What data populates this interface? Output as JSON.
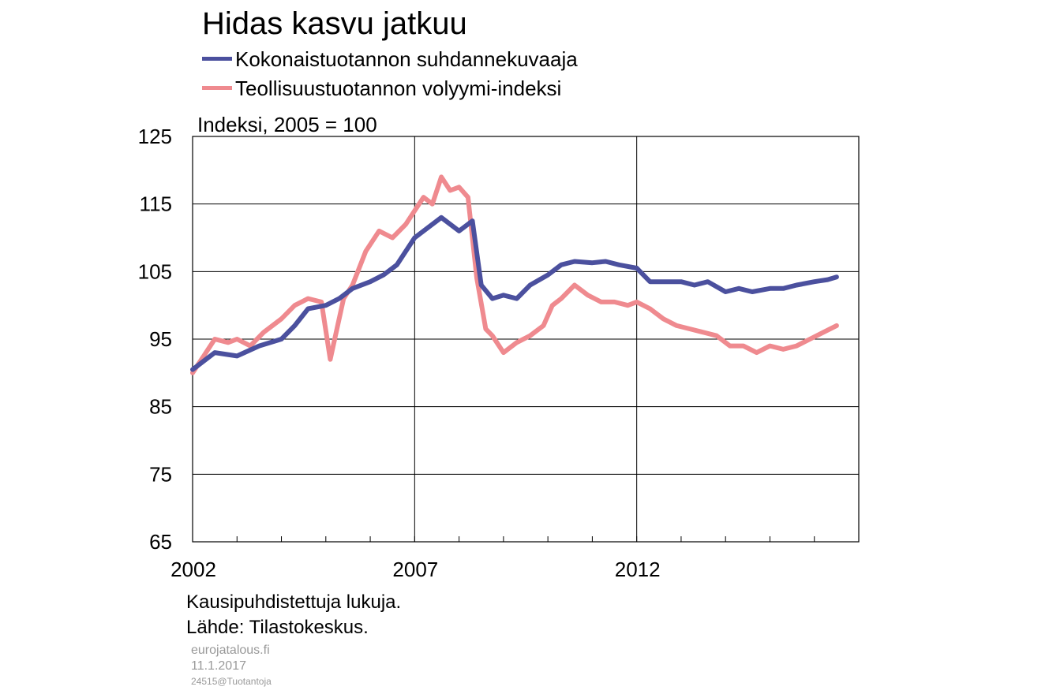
{
  "title": "Hidas kasvu jatkuu",
  "unit_label": "Indeksi, 2005 = 100",
  "notes": [
    "Kausipuhdistettuja lukuja.",
    "Lähde: Tilastokeskus."
  ],
  "footer": {
    "site": "eurojatalous.fi",
    "date": "11.1.2017",
    "code": "24515@Tuotantoja"
  },
  "colors": {
    "series1": "#4b509e",
    "series2": "#ef8a8f"
  },
  "chart_data": {
    "type": "line",
    "title": "Hidas kasvu jatkuu",
    "ylabel": "Indeksi, 2005 = 100",
    "xlabel": "",
    "ylim": [
      65,
      125
    ],
    "yticks": [
      65,
      75,
      85,
      95,
      105,
      115,
      125
    ],
    "xlim": [
      2002,
      2017
    ],
    "xticks_labeled": [
      "2002",
      "2007",
      "2012"
    ],
    "grid": true,
    "legend": "top",
    "series": [
      {
        "name": "Kokonaistuotannon suhdannekuvaaja",
        "color": "#4b509e",
        "x": [
          2002.0,
          2002.5,
          2003.0,
          2003.5,
          2004.0,
          2004.3,
          2004.6,
          2005.0,
          2005.3,
          2005.6,
          2006.0,
          2006.3,
          2006.6,
          2007.0,
          2007.3,
          2007.6,
          2008.0,
          2008.3,
          2008.5,
          2008.75,
          2009.0,
          2009.3,
          2009.6,
          2010.0,
          2010.3,
          2010.6,
          2011.0,
          2011.3,
          2011.6,
          2012.0,
          2012.3,
          2012.6,
          2013.0,
          2013.3,
          2013.6,
          2014.0,
          2014.3,
          2014.6,
          2015.0,
          2015.3,
          2015.6,
          2016.0,
          2016.3,
          2016.5
        ],
        "y": [
          90.5,
          93.0,
          92.5,
          94.0,
          95.0,
          97.0,
          99.5,
          100.0,
          101.0,
          102.5,
          103.5,
          104.5,
          106.0,
          110.0,
          111.5,
          113.0,
          111.0,
          112.5,
          103.0,
          101.0,
          101.5,
          101.0,
          103.0,
          104.5,
          106.0,
          106.5,
          106.3,
          106.5,
          106.0,
          105.5,
          103.5,
          103.5,
          103.5,
          103.0,
          103.5,
          102.0,
          102.5,
          102.0,
          102.5,
          102.5,
          103.0,
          103.5,
          103.8,
          104.2
        ]
      },
      {
        "name": "Teollisuustuotannon volyymi-indeksi",
        "color": "#ef8a8f",
        "x": [
          2002.0,
          2002.2,
          2002.5,
          2002.8,
          2003.0,
          2003.3,
          2003.6,
          2004.0,
          2004.3,
          2004.6,
          2004.9,
          2005.1,
          2005.4,
          2005.6,
          2005.9,
          2006.2,
          2006.5,
          2006.8,
          2007.0,
          2007.2,
          2007.4,
          2007.6,
          2007.8,
          2008.0,
          2008.2,
          2008.4,
          2008.6,
          2008.75,
          2009.0,
          2009.3,
          2009.6,
          2009.9,
          2010.1,
          2010.3,
          2010.6,
          2010.9,
          2011.2,
          2011.5,
          2011.8,
          2012.0,
          2012.3,
          2012.6,
          2012.9,
          2013.2,
          2013.5,
          2013.8,
          2014.1,
          2014.4,
          2014.7,
          2015.0,
          2015.3,
          2015.6,
          2015.9,
          2016.2,
          2016.5
        ],
        "y": [
          90.0,
          92.0,
          95.0,
          94.5,
          95.0,
          94.0,
          96.0,
          98.0,
          100.0,
          101.0,
          100.5,
          92.0,
          101.0,
          103.0,
          108.0,
          111.0,
          110.0,
          112.0,
          114.0,
          116.0,
          115.0,
          119.0,
          117.0,
          117.5,
          116.0,
          104.0,
          96.5,
          95.5,
          93.0,
          94.5,
          95.5,
          97.0,
          100.0,
          101.0,
          103.0,
          101.5,
          100.5,
          100.5,
          100.0,
          100.5,
          99.5,
          98.0,
          97.0,
          96.5,
          96.0,
          95.5,
          94.0,
          94.0,
          93.0,
          94.0,
          93.5,
          94.0,
          95.0,
          96.0,
          97.0
        ]
      }
    ]
  }
}
